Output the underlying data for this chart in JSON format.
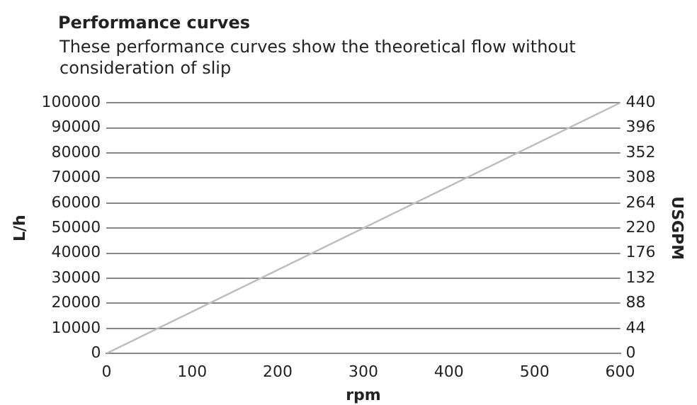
{
  "chart_data": {
    "type": "line",
    "title": "Performance curves",
    "subtitle": "These performance curves show the theoretical flow without consideration of slip",
    "xlabel": "rpm",
    "ylabel": "L/h",
    "y2label": "USGPM",
    "x": [
      0,
      600
    ],
    "series": [
      {
        "color": "#bdbdbd",
        "values": [
          0,
          100000
        ]
      }
    ],
    "xlim": [
      0,
      600
    ],
    "xticks": [
      0,
      100,
      200,
      300,
      400,
      500,
      600
    ],
    "ylim": [
      0,
      100000
    ],
    "yticks": [
      0,
      10000,
      20000,
      30000,
      40000,
      50000,
      60000,
      70000,
      80000,
      90000,
      100000
    ],
    "y2lim": [
      0,
      440
    ],
    "y2ticks": [
      0,
      44,
      88,
      132,
      176,
      220,
      264,
      308,
      352,
      396,
      440
    ],
    "grid": "y",
    "legend": false,
    "marker": "none",
    "line_style": "solid"
  }
}
